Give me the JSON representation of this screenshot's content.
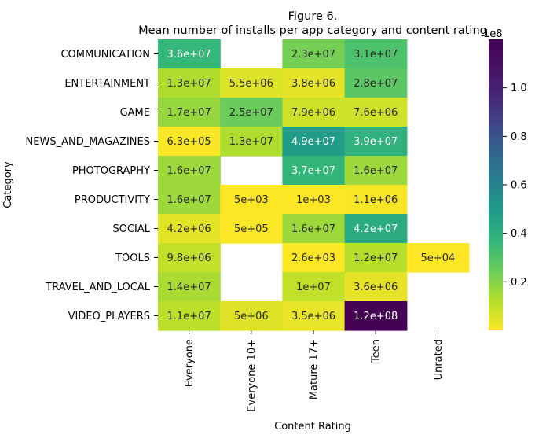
{
  "chart_data": {
    "type": "heatmap",
    "title_line1": "Figure 6.",
    "title_line2": "Mean number of installs per app category and content rating",
    "xlabel": "Content Rating",
    "ylabel": "Category",
    "columns": [
      "Everyone",
      "Everyone 10+",
      "Mature 17+",
      "Teen",
      "Unrated"
    ],
    "rows": [
      "COMMUNICATION",
      "ENTERTAINMENT",
      "GAME",
      "NEWS_AND_MAGAZINES",
      "PHOTOGRAPHY",
      "PRODUCTIVITY",
      "SOCIAL",
      "TOOLS",
      "TRAVEL_AND_LOCAL",
      "VIDEO_PLAYERS"
    ],
    "values": [
      [
        36000000,
        null,
        23000000,
        31000000,
        null
      ],
      [
        13000000,
        5500000,
        3800000,
        28000000,
        null
      ],
      [
        17000000,
        25000000,
        7900000,
        7600000,
        null
      ],
      [
        630000,
        13000000,
        49000000,
        39000000,
        null
      ],
      [
        16000000,
        null,
        37000000,
        16000000,
        null
      ],
      [
        16000000,
        5000,
        1000,
        1100000,
        null
      ],
      [
        4200000,
        500000,
        16000000,
        42000000,
        null
      ],
      [
        9800000,
        null,
        2600,
        12000000,
        50000
      ],
      [
        14000000,
        null,
        10000000,
        3600000,
        null
      ],
      [
        11000000,
        5000000,
        3500000,
        120000000,
        null
      ]
    ],
    "labels": [
      [
        "3.6e+07",
        "",
        "2.3e+07",
        "3.1e+07",
        ""
      ],
      [
        "1.3e+07",
        "5.5e+06",
        "3.8e+06",
        "2.8e+07",
        ""
      ],
      [
        "1.7e+07",
        "2.5e+07",
        "7.9e+06",
        "7.6e+06",
        ""
      ],
      [
        "6.3e+05",
        "1.3e+07",
        "4.9e+07",
        "3.9e+07",
        ""
      ],
      [
        "1.6e+07",
        "",
        "3.7e+07",
        "1.6e+07",
        ""
      ],
      [
        "1.6e+07",
        "5e+03",
        "1e+03",
        "1.1e+06",
        ""
      ],
      [
        "4.2e+06",
        "5e+05",
        "1.6e+07",
        "4.2e+07",
        ""
      ],
      [
        "9.8e+06",
        "",
        "2.6e+03",
        "1.2e+07",
        "5e+04"
      ],
      [
        "1.4e+07",
        "",
        "1e+07",
        "3.6e+06",
        ""
      ],
      [
        "1.1e+07",
        "5e+06",
        "3.5e+06",
        "1.2e+08",
        ""
      ]
    ],
    "colormap": "viridis_r",
    "vmin": 1000,
    "vmax": 120000000,
    "colorbar": {
      "ticks": [
        0.2,
        0.4,
        0.6,
        0.8,
        1.0
      ],
      "tick_labels": [
        "0.2",
        "0.4",
        "0.6",
        "0.8",
        "1.0"
      ],
      "offset_label": "1e8"
    }
  }
}
